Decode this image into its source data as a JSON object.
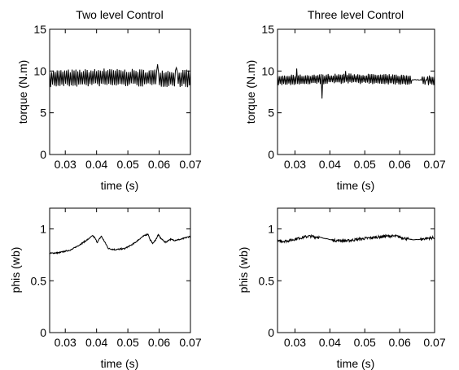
{
  "chart_data": [
    {
      "id": "p1",
      "type": "line",
      "title": "Two level Control",
      "xlabel": "time (s)",
      "ylabel": "torque (N.m)",
      "xlim": [
        0.025,
        0.07
      ],
      "ylim": [
        0,
        15
      ],
      "xticks": [
        0.03,
        0.04,
        0.05,
        0.06,
        0.07
      ],
      "xtick_labels": [
        "0.03",
        "0.04",
        "0.05",
        "0.06",
        "0.07"
      ],
      "yticks": [
        0,
        5,
        10,
        15
      ],
      "ytick_labels": [
        "0",
        "5",
        "10",
        "15"
      ],
      "grid": false,
      "signal": {
        "kind": "ripple",
        "x_start": 0.025,
        "x_end": 0.07,
        "mean": 9.15,
        "ripple_amplitude": 0.85,
        "period": 0.0006,
        "mean_points": [
          [
            0.025,
            9.1
          ],
          [
            0.04,
            9.2
          ],
          [
            0.05,
            9.2
          ],
          [
            0.07,
            9.1
          ]
        ],
        "spikes": [
          [
            0.0425,
            10.3
          ],
          [
            0.0595,
            10.8
          ],
          [
            0.0655,
            10.4
          ]
        ]
      }
    },
    {
      "id": "p2",
      "type": "line",
      "title": "Three level Control",
      "xlabel": "time (s)",
      "ylabel": "torque (N.m)",
      "xlim": [
        0.025,
        0.07
      ],
      "ylim": [
        0,
        15
      ],
      "xticks": [
        0.03,
        0.04,
        0.05,
        0.06,
        0.07
      ],
      "xtick_labels": [
        "0.03",
        "0.04",
        "0.05",
        "0.06",
        "0.07"
      ],
      "yticks": [
        0,
        5,
        10,
        15
      ],
      "ytick_labels": [
        "0",
        "5",
        "10",
        "15"
      ],
      "grid": false,
      "signal": {
        "kind": "ripple",
        "x_start": 0.025,
        "x_end": 0.07,
        "mean": 8.95,
        "ripple_amplitude": 0.5,
        "period": 0.0005,
        "mean_points": [
          [
            0.025,
            8.9
          ],
          [
            0.045,
            9.1
          ],
          [
            0.07,
            8.9
          ]
        ],
        "spikes": [
          [
            0.0305,
            10.3
          ],
          [
            0.0378,
            6.7
          ],
          [
            0.0445,
            10.0
          ]
        ],
        "quiet_segments": [
          [
            0.0635,
            0.0665
          ],
          [
            0.0675,
            0.068
          ]
        ]
      }
    },
    {
      "id": "p3",
      "type": "line",
      "title": "",
      "xlabel": "time (s)",
      "ylabel": "phis (wb)",
      "xlim": [
        0.025,
        0.07
      ],
      "ylim": [
        0,
        1.2
      ],
      "xticks": [
        0.03,
        0.04,
        0.05,
        0.06,
        0.07
      ],
      "xtick_labels": [
        "0.03",
        "0.04",
        "0.05",
        "0.06",
        "0.07"
      ],
      "yticks": [
        0,
        0.5,
        1
      ],
      "ytick_labels": [
        "0",
        "0.5",
        "1"
      ],
      "grid": false,
      "signal": {
        "kind": "piecewise",
        "x": [
          0.025,
          0.028,
          0.032,
          0.035,
          0.0375,
          0.0388,
          0.0395,
          0.0402,
          0.0415,
          0.0425,
          0.0438,
          0.046,
          0.049,
          0.052,
          0.054,
          0.0555,
          0.0565,
          0.057,
          0.058,
          0.059,
          0.0597,
          0.0605,
          0.062,
          0.0635,
          0.065,
          0.067,
          0.07
        ],
        "y": [
          0.765,
          0.77,
          0.8,
          0.855,
          0.905,
          0.935,
          0.91,
          0.87,
          0.93,
          0.88,
          0.81,
          0.8,
          0.81,
          0.86,
          0.91,
          0.94,
          0.95,
          0.9,
          0.86,
          0.9,
          0.945,
          0.91,
          0.87,
          0.9,
          0.89,
          0.9,
          0.93
        ],
        "noise": 0.006
      }
    },
    {
      "id": "p4",
      "type": "line",
      "title": "",
      "xlabel": "time (s)",
      "ylabel": "phis (wb)",
      "xlim": [
        0.025,
        0.07
      ],
      "ylim": [
        0,
        1.2
      ],
      "xticks": [
        0.03,
        0.04,
        0.05,
        0.06,
        0.07
      ],
      "xtick_labels": [
        "0.03",
        "0.04",
        "0.05",
        "0.06",
        "0.07"
      ],
      "yticks": [
        0,
        0.5,
        1
      ],
      "ytick_labels": [
        "0",
        "0.5",
        "1"
      ],
      "grid": false,
      "signal": {
        "kind": "piecewise",
        "x": [
          0.025,
          0.028,
          0.031,
          0.034,
          0.037,
          0.041,
          0.045,
          0.048,
          0.052,
          0.056,
          0.059,
          0.062,
          0.064,
          0.066,
          0.068,
          0.07
        ],
        "y": [
          0.88,
          0.885,
          0.91,
          0.93,
          0.92,
          0.89,
          0.885,
          0.9,
          0.915,
          0.93,
          0.93,
          0.905,
          0.895,
          0.9,
          0.91,
          0.915
        ],
        "noise": 0.013,
        "quiet_segments": [
          [
            0.037,
            0.0405
          ],
          [
            0.0625,
            0.066
          ]
        ]
      }
    }
  ]
}
